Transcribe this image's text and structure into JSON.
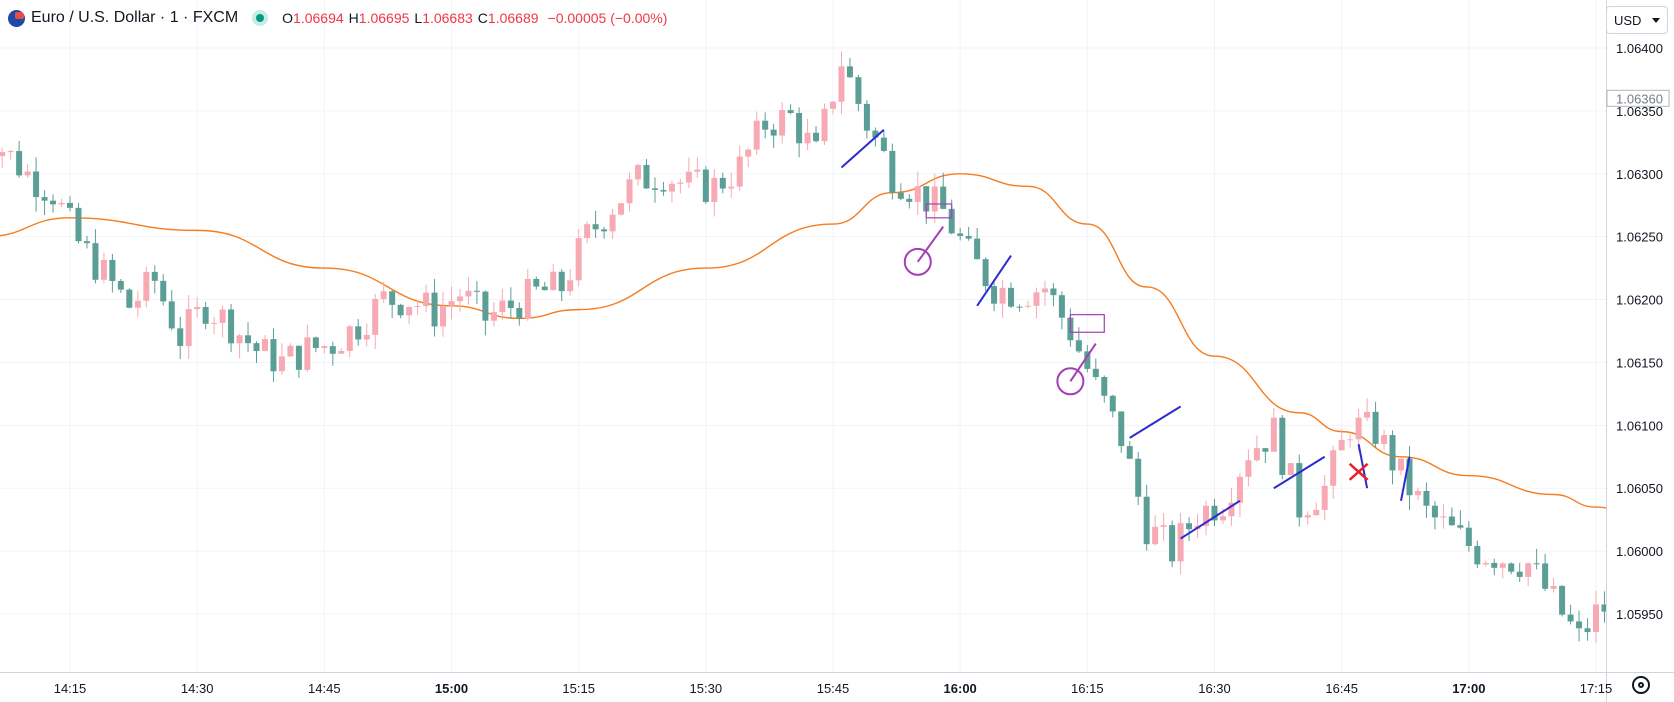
{
  "header": {
    "symbol_title": "Euro / U.S. Dollar · 1 · FXCM",
    "ohlc": [
      {
        "k": "O",
        "v": "1.06694"
      },
      {
        "k": "H",
        "v": "1.06695"
      },
      {
        "k": "L",
        "v": "1.06683"
      },
      {
        "k": "C",
        "v": "1.06689"
      }
    ],
    "change": "−0.00005 (−0.00%)"
  },
  "currency": "USD",
  "colors": {
    "up": "#f7a9b4",
    "down": "#5b9e95",
    "ma": "#f57c1f",
    "annot_line": "#2b2bd0",
    "annot_circle": "#a43fb5",
    "annot_cross": "#e8202a",
    "grid": "#f0f3fa"
  },
  "icons": [
    "eurusd-flag-icon",
    "market-status-icon",
    "chevron-down-icon",
    "settings-icon"
  ],
  "chart_data": {
    "type": "candlestick",
    "x_unit": "time (1-minute bars)",
    "xlim": [
      "14:05",
      "17:20"
    ],
    "ylim": [
      1.059,
      1.0644
    ],
    "time_ticks": [
      {
        "t": "14:15",
        "bold": false
      },
      {
        "t": "14:30",
        "bold": false
      },
      {
        "t": "14:45",
        "bold": false
      },
      {
        "t": "15:00",
        "bold": true
      },
      {
        "t": "15:15",
        "bold": false
      },
      {
        "t": "15:30",
        "bold": false
      },
      {
        "t": "15:45",
        "bold": false
      },
      {
        "t": "16:00",
        "bold": true
      },
      {
        "t": "16:15",
        "bold": false
      },
      {
        "t": "16:30",
        "bold": false
      },
      {
        "t": "16:45",
        "bold": false
      },
      {
        "t": "17:00",
        "bold": true
      },
      {
        "t": "17:15",
        "bold": false
      }
    ],
    "price_ticks": [
      "1.06400",
      "1.06350",
      "1.06300",
      "1.06250",
      "1.06200",
      "1.06150",
      "1.06100",
      "1.06050",
      "1.06000",
      "1.05950"
    ],
    "price_marker": "1.06360",
    "grid": true,
    "candle_anchors": [
      [
        "14:04",
        1.0634
      ],
      [
        "14:07",
        1.0632
      ],
      [
        "14:10",
        1.063
      ],
      [
        "14:13",
        1.06285
      ],
      [
        "14:16",
        1.06245
      ],
      [
        "14:19",
        1.0622
      ],
      [
        "14:22",
        1.06195
      ],
      [
        "14:25",
        1.06215
      ],
      [
        "14:28",
        1.0617
      ],
      [
        "14:31",
        1.06195
      ],
      [
        "14:34",
        1.0618
      ],
      [
        "14:37",
        1.0616
      ],
      [
        "14:40",
        1.0615
      ],
      [
        "14:43",
        1.0616
      ],
      [
        "14:46",
        1.06165
      ],
      [
        "14:49",
        1.0618
      ],
      [
        "14:52",
        1.062
      ],
      [
        "14:55",
        1.062
      ],
      [
        "14:58",
        1.0619
      ],
      [
        "15:01",
        1.06205
      ],
      [
        "15:04",
        1.06185
      ],
      [
        "15:07",
        1.06195
      ],
      [
        "15:10",
        1.06205
      ],
      [
        "15:13",
        1.0621
      ],
      [
        "15:16",
        1.0625
      ],
      [
        "15:19",
        1.06275
      ],
      [
        "15:22",
        1.06295
      ],
      [
        "15:25",
        1.063
      ],
      [
        "15:28",
        1.0629
      ],
      [
        "15:31",
        1.0629
      ],
      [
        "15:34",
        1.06305
      ],
      [
        "15:37",
        1.0634
      ],
      [
        "15:40",
        1.06345
      ],
      [
        "15:43",
        1.06315
      ],
      [
        "15:46",
        1.0639
      ],
      [
        "15:49",
        1.0634
      ],
      [
        "15:52",
        1.063
      ],
      [
        "15:55",
        1.06285
      ],
      [
        "15:58",
        1.0627
      ],
      [
        "16:01",
        1.06235
      ],
      [
        "16:04",
        1.0621
      ],
      [
        "16:07",
        1.06205
      ],
      [
        "16:10",
        1.0621
      ],
      [
        "16:13",
        1.06175
      ],
      [
        "16:16",
        1.0613
      ],
      [
        "16:19",
        1.0609
      ],
      [
        "16:22",
        1.0602
      ],
      [
        "16:25",
        1.06
      ],
      [
        "16:28",
        1.0603
      ],
      [
        "16:31",
        1.0604
      ],
      [
        "16:34",
        1.0608
      ],
      [
        "16:37",
        1.06095
      ],
      [
        "16:40",
        1.06035
      ],
      [
        "16:43",
        1.0605
      ],
      [
        "16:46",
        1.061
      ],
      [
        "16:49",
        1.06095
      ],
      [
        "16:52",
        1.0606
      ],
      [
        "16:55",
        1.0603
      ],
      [
        "16:58",
        1.06015
      ],
      [
        "17:01",
        1.06
      ],
      [
        "17:04",
        1.05995
      ],
      [
        "17:07",
        1.0599
      ],
      [
        "17:10",
        1.0596
      ],
      [
        "17:13",
        1.0593
      ],
      [
        "17:15",
        1.0595
      ],
      [
        "17:16",
        1.05955
      ]
    ],
    "moving_average": [
      [
        "14:05",
        1.0625
      ],
      [
        "14:15",
        1.06265
      ],
      [
        "14:30",
        1.06255
      ],
      [
        "14:45",
        1.06225
      ],
      [
        "15:00",
        1.06195
      ],
      [
        "15:08",
        1.06185
      ],
      [
        "15:15",
        1.06192
      ],
      [
        "15:30",
        1.06225
      ],
      [
        "15:45",
        1.0626
      ],
      [
        "15:52",
        1.06285
      ],
      [
        "16:00",
        1.063
      ],
      [
        "16:08",
        1.0629
      ],
      [
        "16:15",
        1.0626
      ],
      [
        "16:22",
        1.0621
      ],
      [
        "16:30",
        1.06155
      ],
      [
        "16:40",
        1.0611
      ],
      [
        "16:45",
        1.06095
      ],
      [
        "16:52",
        1.06075
      ],
      [
        "17:00",
        1.0606
      ],
      [
        "17:10",
        1.06045
      ],
      [
        "17:15",
        1.06035
      ],
      [
        "17:20",
        1.06028
      ]
    ],
    "annotations": {
      "lines": [
        [
          [
            "15:46",
            1.06305
          ],
          [
            "15:51",
            1.06335
          ]
        ],
        [
          [
            "16:02",
            1.06195
          ],
          [
            "16:06",
            1.06235
          ]
        ],
        [
          [
            "16:20",
            1.0609
          ],
          [
            "16:26",
            1.06115
          ]
        ],
        [
          [
            "16:26",
            1.0601
          ],
          [
            "16:33",
            1.0604
          ]
        ],
        [
          [
            "16:37",
            1.0605
          ],
          [
            "16:43",
            1.06075
          ]
        ],
        [
          [
            "16:47",
            1.06085
          ],
          [
            "16:48",
            1.0605
          ]
        ],
        [
          [
            "16:52",
            1.0604
          ],
          [
            "16:53",
            1.06075
          ]
        ]
      ],
      "circles": [
        {
          "t": "15:55",
          "p": 1.0623,
          "stub_to": [
            "15:58",
            1.06258
          ]
        },
        {
          "t": "16:13",
          "p": 1.06135,
          "stub_to": [
            "16:16",
            1.06165
          ]
        }
      ],
      "boxes": [
        {
          "t0": "15:56",
          "t1": "15:59",
          "p0": 1.06265,
          "p1": 1.06276
        },
        {
          "t0": "16:13",
          "t1": "16:17",
          "p0": 1.06174,
          "p1": 1.06188
        }
      ],
      "cross": {
        "t": "16:47",
        "p": 1.06063
      }
    }
  }
}
